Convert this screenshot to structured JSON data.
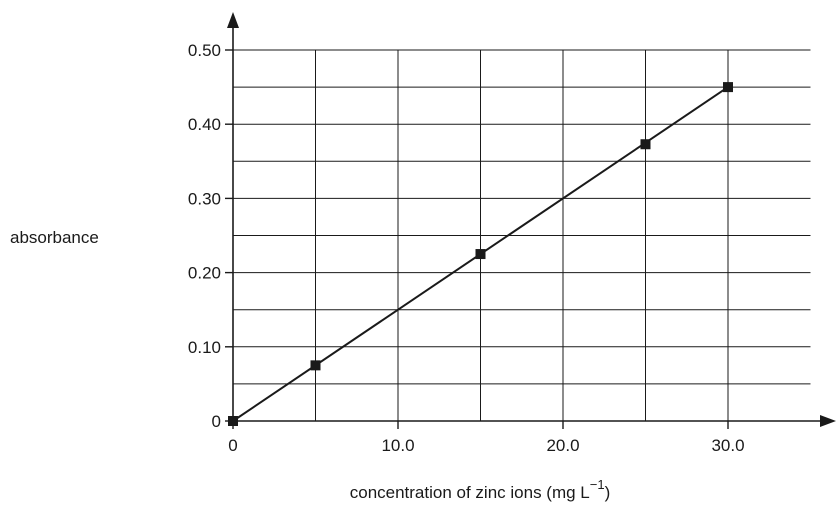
{
  "chart_data": {
    "type": "line",
    "title": "",
    "xlabel": "concentration of zinc ions (mg L",
    "xlabel_superscript": "−1",
    "xlabel_suffix": ")",
    "ylabel": "absorbance",
    "xlim": [
      0,
      35
    ],
    "ylim": [
      0,
      0.5
    ],
    "grid": true,
    "x_ticks": [
      {
        "value": 0,
        "label": "0"
      },
      {
        "value": 10,
        "label": "10.0"
      },
      {
        "value": 20,
        "label": "20.0"
      },
      {
        "value": 30,
        "label": "30.0"
      }
    ],
    "y_ticks": [
      {
        "value": 0,
        "label": "0"
      },
      {
        "value": 0.1,
        "label": "0.10"
      },
      {
        "value": 0.2,
        "label": "0.20"
      },
      {
        "value": 0.3,
        "label": "0.30"
      },
      {
        "value": 0.4,
        "label": "0.40"
      },
      {
        "value": 0.5,
        "label": "0.50"
      }
    ],
    "x_grid": [
      0,
      5,
      10,
      15,
      20,
      25,
      30
    ],
    "y_grid": [
      0,
      0.05,
      0.1,
      0.15,
      0.2,
      0.25,
      0.3,
      0.35,
      0.4,
      0.45,
      0.5
    ],
    "series": [
      {
        "marker": "square",
        "color": "#1a1a1a",
        "points": [
          {
            "x": 0,
            "y": 0
          },
          {
            "x": 5,
            "y": 0.075
          },
          {
            "x": 15,
            "y": 0.225
          },
          {
            "x": 25,
            "y": 0.373
          },
          {
            "x": 30,
            "y": 0.45
          }
        ]
      }
    ],
    "line": {
      "x1": 0,
      "y1": 0,
      "x2": 30,
      "y2": 0.45
    }
  }
}
